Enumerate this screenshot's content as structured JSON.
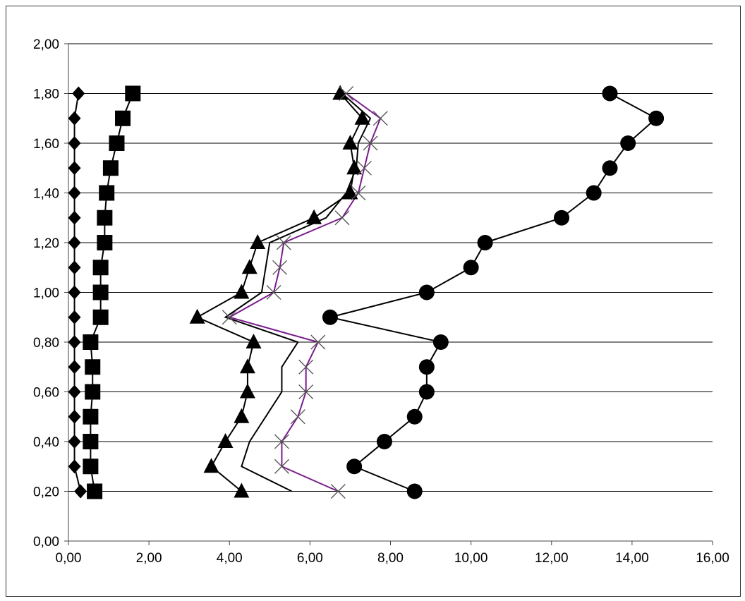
{
  "chart_data": {
    "type": "scatter",
    "title": "",
    "xlabel": "",
    "ylabel": "",
    "xlim": [
      0,
      16
    ],
    "ylim": [
      0,
      2
    ],
    "x_ticks": [
      {
        "value": 0,
        "label": "0,00"
      },
      {
        "value": 2,
        "label": "2,00"
      },
      {
        "value": 4,
        "label": "4,00"
      },
      {
        "value": 6,
        "label": "6,00"
      },
      {
        "value": 8,
        "label": "8,00"
      },
      {
        "value": 10,
        "label": "10,00"
      },
      {
        "value": 12,
        "label": "12,00"
      },
      {
        "value": 14,
        "label": "14,00"
      },
      {
        "value": 16,
        "label": "16,00"
      }
    ],
    "y_ticks": [
      {
        "value": 0,
        "label": "0,00"
      },
      {
        "value": 0.2,
        "label": "0,20"
      },
      {
        "value": 0.4,
        "label": "0,40"
      },
      {
        "value": 0.6,
        "label": "0,60"
      },
      {
        "value": 0.8,
        "label": "0,80"
      },
      {
        "value": 1.0,
        "label": "1,00"
      },
      {
        "value": 1.2,
        "label": "1,20"
      },
      {
        "value": 1.4,
        "label": "1,40"
      },
      {
        "value": 1.6,
        "label": "1,60"
      },
      {
        "value": 1.8,
        "label": "1,80"
      },
      {
        "value": 2.0,
        "label": "2,00"
      }
    ],
    "grid": "horizontal",
    "legend": "none",
    "y": [
      0.2,
      0.3,
      0.4,
      0.5,
      0.6,
      0.7,
      0.8,
      0.9,
      1.0,
      1.1,
      1.2,
      1.3,
      1.4,
      1.5,
      1.6,
      1.7,
      1.8
    ],
    "series": [
      {
        "marker": "diamond",
        "color": "#000000",
        "x": [
          0.3,
          0.15,
          0.15,
          0.15,
          0.15,
          0.15,
          0.15,
          0.15,
          0.15,
          0.15,
          0.15,
          0.15,
          0.15,
          0.15,
          0.15,
          0.15,
          0.25
        ]
      },
      {
        "marker": "square",
        "color": "#000000",
        "x": [
          0.65,
          0.55,
          0.55,
          0.55,
          0.6,
          0.6,
          0.55,
          0.8,
          0.8,
          0.8,
          0.9,
          0.9,
          0.95,
          1.05,
          1.2,
          1.35,
          1.6
        ]
      },
      {
        "marker": "triangle",
        "color": "#000000",
        "x": [
          4.3,
          3.55,
          3.9,
          4.3,
          4.45,
          4.45,
          4.6,
          3.2,
          4.3,
          4.5,
          4.7,
          6.1,
          7.0,
          7.1,
          7.0,
          7.3,
          6.75
        ]
      },
      {
        "marker": "none",
        "color": "#000000",
        "x": [
          5.55,
          4.3,
          4.5,
          4.9,
          5.3,
          5.3,
          5.7,
          3.9,
          4.8,
          4.9,
          5.0,
          6.4,
          6.9,
          7.15,
          7.2,
          7.5,
          6.8
        ]
      },
      {
        "marker": "x",
        "color": "#7a1b8c",
        "x": [
          6.7,
          5.3,
          5.3,
          5.7,
          5.9,
          5.9,
          6.2,
          4.0,
          5.1,
          5.25,
          5.35,
          6.8,
          7.2,
          7.35,
          7.5,
          7.75,
          6.9
        ]
      },
      {
        "marker": "circle",
        "color": "#000000",
        "x": [
          8.6,
          7.1,
          7.85,
          8.6,
          8.9,
          8.9,
          9.25,
          6.5,
          8.9,
          10.0,
          10.35,
          12.25,
          13.05,
          13.45,
          13.9,
          14.6,
          13.45
        ]
      }
    ]
  }
}
